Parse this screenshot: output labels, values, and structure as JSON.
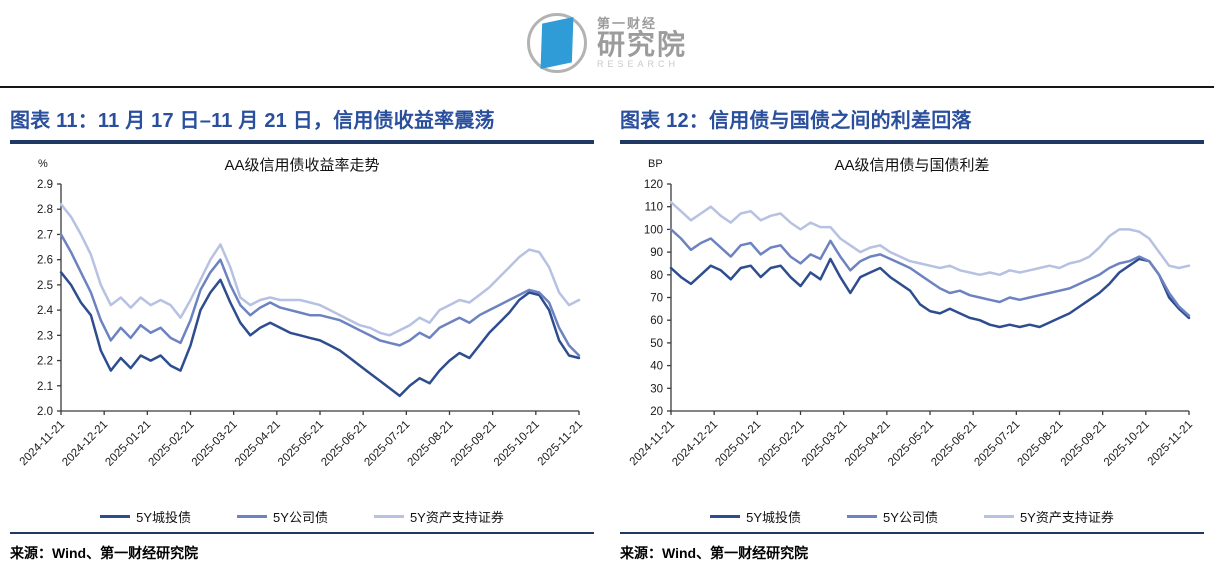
{
  "logo": {
    "line1": "第一财经",
    "line2": "研究院",
    "line3": "RESEARCH"
  },
  "colors": {
    "header_blue": "#2a4f9c",
    "rule_navy": "#1f3864",
    "logo_blue": "#2f9cd7",
    "logo_gray": "#9c9c9c",
    "series_dark": "#2e4d8f",
    "series_medium": "#6d83c1",
    "series_light": "#b7c1e2"
  },
  "panels": [
    {
      "header": "图表 11：11 月 17 日–11 月 21 日，信用债收益率震荡",
      "source": "来源：Wind、第一财经研究院"
    },
    {
      "header": "图表 12：信用债与国债之间的利差回落",
      "source": "来源：Wind、第一财经研究院"
    }
  ],
  "chart_data": [
    {
      "type": "line",
      "title": "AA级信用债收益率走势",
      "unit": "%",
      "ylim": [
        2.0,
        2.9
      ],
      "ytick_step": 0.1,
      "ytick_decimals": 1,
      "grid": false,
      "legend_position": "bottom",
      "x_labels": [
        "2024-11-21",
        "2024-12-21",
        "2025-01-21",
        "2025-02-21",
        "2025-03-21",
        "2025-04-21",
        "2025-05-21",
        "2025-06-21",
        "2025-07-21",
        "2025-08-21",
        "2025-09-21",
        "2025-10-21",
        "2025-11-21"
      ],
      "series": [
        {
          "name": "5Y城投债",
          "color": "#2e4d8f",
          "values": [
            2.55,
            2.5,
            2.43,
            2.38,
            2.24,
            2.16,
            2.21,
            2.17,
            2.22,
            2.2,
            2.22,
            2.18,
            2.16,
            2.26,
            2.4,
            2.47,
            2.52,
            2.43,
            2.35,
            2.3,
            2.33,
            2.35,
            2.33,
            2.31,
            2.3,
            2.29,
            2.28,
            2.26,
            2.24,
            2.21,
            2.18,
            2.15,
            2.12,
            2.09,
            2.06,
            2.1,
            2.13,
            2.11,
            2.16,
            2.2,
            2.23,
            2.21,
            2.26,
            2.31,
            2.35,
            2.39,
            2.44,
            2.47,
            2.46,
            2.4,
            2.28,
            2.22,
            2.21
          ]
        },
        {
          "name": "5Y公司债",
          "color": "#6d83c1",
          "values": [
            2.7,
            2.63,
            2.55,
            2.47,
            2.36,
            2.28,
            2.33,
            2.29,
            2.34,
            2.31,
            2.33,
            2.29,
            2.27,
            2.36,
            2.48,
            2.55,
            2.6,
            2.5,
            2.42,
            2.38,
            2.41,
            2.43,
            2.41,
            2.4,
            2.39,
            2.38,
            2.38,
            2.37,
            2.36,
            2.34,
            2.32,
            2.3,
            2.28,
            2.27,
            2.26,
            2.28,
            2.31,
            2.29,
            2.33,
            2.35,
            2.37,
            2.35,
            2.38,
            2.4,
            2.42,
            2.44,
            2.46,
            2.48,
            2.47,
            2.43,
            2.33,
            2.26,
            2.22
          ]
        },
        {
          "name": "5Y资产支持证券",
          "color": "#b7c1e2",
          "values": [
            2.82,
            2.77,
            2.7,
            2.62,
            2.5,
            2.42,
            2.45,
            2.41,
            2.45,
            2.42,
            2.44,
            2.42,
            2.37,
            2.44,
            2.52,
            2.6,
            2.66,
            2.57,
            2.45,
            2.42,
            2.44,
            2.45,
            2.44,
            2.44,
            2.44,
            2.43,
            2.42,
            2.4,
            2.38,
            2.36,
            2.34,
            2.33,
            2.31,
            2.3,
            2.32,
            2.34,
            2.37,
            2.35,
            2.4,
            2.42,
            2.44,
            2.43,
            2.46,
            2.49,
            2.53,
            2.57,
            2.61,
            2.64,
            2.63,
            2.57,
            2.47,
            2.42,
            2.44
          ]
        }
      ]
    },
    {
      "type": "line",
      "title": "AA级信用债与国债利差",
      "unit": "BP",
      "ylim": [
        20,
        120
      ],
      "ytick_step": 10,
      "ytick_decimals": 0,
      "grid": false,
      "legend_position": "bottom",
      "x_labels": [
        "2024-11-21",
        "2024-12-21",
        "2025-01-21",
        "2025-02-21",
        "2025-03-21",
        "2025-04-21",
        "2025-05-21",
        "2025-06-21",
        "2025-07-21",
        "2025-08-21",
        "2025-09-21",
        "2025-10-21",
        "2025-11-21"
      ],
      "series": [
        {
          "name": "5Y城投债",
          "color": "#2e4d8f",
          "values": [
            83,
            79,
            76,
            80,
            84,
            82,
            78,
            83,
            84,
            79,
            83,
            84,
            79,
            75,
            81,
            78,
            87,
            79,
            72,
            79,
            81,
            83,
            79,
            76,
            73,
            67,
            64,
            63,
            65,
            63,
            61,
            60,
            58,
            57,
            58,
            57,
            58,
            57,
            59,
            61,
            63,
            66,
            69,
            72,
            76,
            81,
            84,
            87,
            86,
            80,
            70,
            65,
            61
          ]
        },
        {
          "name": "5Y公司债",
          "color": "#6d83c1",
          "values": [
            100,
            96,
            91,
            94,
            96,
            92,
            88,
            93,
            94,
            89,
            92,
            93,
            88,
            85,
            89,
            87,
            95,
            88,
            82,
            86,
            88,
            89,
            87,
            85,
            83,
            80,
            77,
            74,
            72,
            73,
            71,
            70,
            69,
            68,
            70,
            69,
            70,
            71,
            72,
            73,
            74,
            76,
            78,
            80,
            83,
            85,
            86,
            88,
            86,
            80,
            72,
            66,
            62
          ]
        },
        {
          "name": "5Y资产支持证券",
          "color": "#b7c1e2",
          "values": [
            112,
            108,
            104,
            107,
            110,
            106,
            103,
            107,
            108,
            104,
            106,
            107,
            103,
            100,
            103,
            101,
            101,
            96,
            93,
            90,
            92,
            93,
            90,
            88,
            86,
            85,
            84,
            83,
            84,
            82,
            81,
            80,
            81,
            80,
            82,
            81,
            82,
            83,
            84,
            83,
            85,
            86,
            88,
            92,
            97,
            100,
            100,
            99,
            96,
            90,
            84,
            83,
            84
          ]
        }
      ]
    }
  ]
}
